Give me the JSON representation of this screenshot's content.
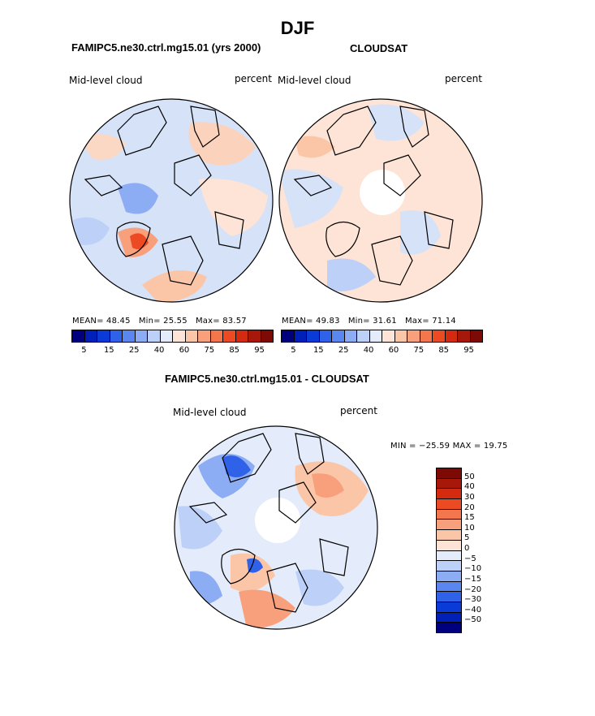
{
  "title": "DJF",
  "colors": {
    "abs_scale": [
      "#00007e",
      "#0020b8",
      "#0a3bd6",
      "#2f62e8",
      "#5a86f0",
      "#8cacf4",
      "#bcd0f8",
      "#e4ecfb",
      "#fde4d6",
      "#fbc6a8",
      "#f8a07c",
      "#f4764c",
      "#ec4a22",
      "#d42a10",
      "#a8180a",
      "#7e0a06"
    ],
    "diff_scale": [
      "#7e0a06",
      "#a8180a",
      "#d42a10",
      "#ec4a22",
      "#f4764c",
      "#f8a07c",
      "#fbc6a8",
      "#fde4d6",
      "#e4ecfb",
      "#bcd0f8",
      "#8cacf4",
      "#5a86f0",
      "#2f62e8",
      "#0a3bd6",
      "#0020b8",
      "#00007e"
    ],
    "land": "#000000",
    "missing": "#ffffff"
  },
  "panels": {
    "model": {
      "title": "FAMIPC5.ne30.ctrl.mg15.01 (yrs 2000)",
      "variable": "Mid-level cloud",
      "units": "percent",
      "stats": {
        "mean_label": "MEAN=",
        "mean": "48.45",
        "min_label": "Min=",
        "min": "25.55",
        "max_label": "Max=",
        "max": "83.57"
      },
      "ticks": [
        "5",
        "15",
        "25",
        "40",
        "60",
        "75",
        "85",
        "95"
      ]
    },
    "obs": {
      "title": "CLOUDSAT",
      "variable": "Mid-level cloud",
      "units": "percent",
      "stats": {
        "mean_label": "MEAN=",
        "mean": "49.83",
        "min_label": "Min=",
        "min": "31.61",
        "max_label": "Max=",
        "max": "71.14"
      },
      "ticks": [
        "5",
        "15",
        "25",
        "40",
        "60",
        "75",
        "85",
        "95"
      ]
    },
    "diff": {
      "title": "FAMIPC5.ne30.ctrl.mg15.01 - CLOUDSAT",
      "variable": "Mid-level cloud",
      "units": "percent",
      "minmax": "MIN = −25.59 MAX =  19.75",
      "ticks": [
        "50",
        "40",
        "30",
        "20",
        "15",
        "10",
        "5",
        "0",
        "−5",
        "−10",
        "−15",
        "−20",
        "−30",
        "−40",
        "−50"
      ]
    }
  }
}
